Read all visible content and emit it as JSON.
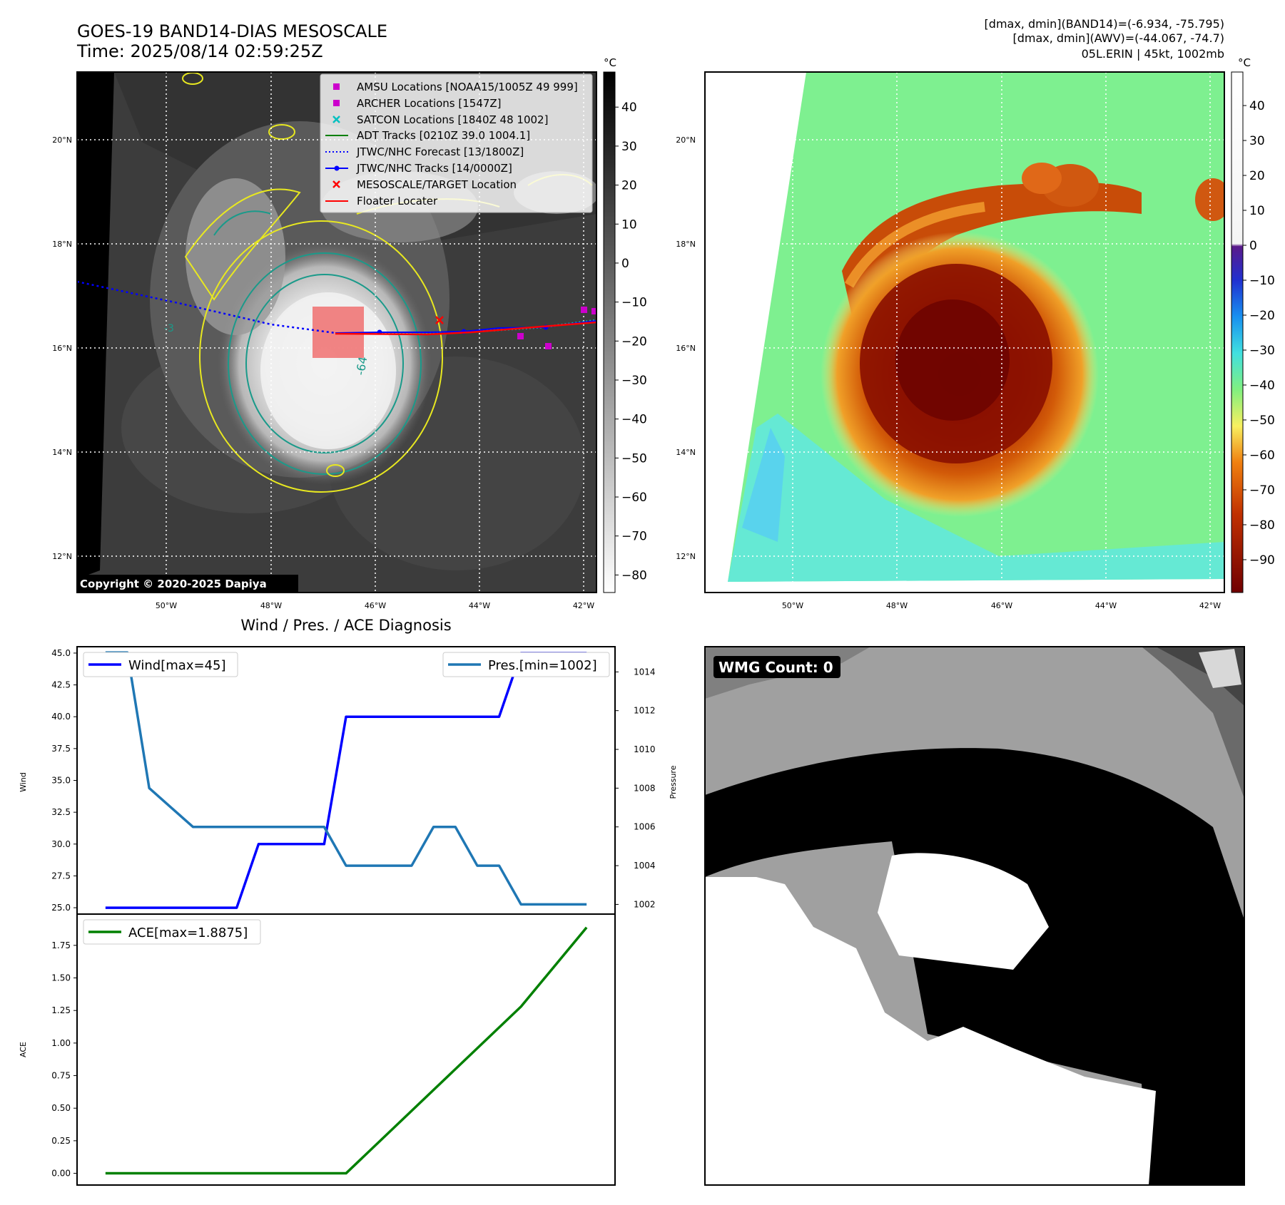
{
  "header": {
    "title_line1": "GOES-19 BAND14-DIAS MESOSCALE",
    "title_line2": "Time: 2025/08/14 02:59:25Z",
    "info_line1": "[dmax, dmin](BAND14)=(-6.934, -75.795)",
    "info_line2": "[dmax, dmin](AWV)=(-44.067, -74.7)",
    "info_line3": "05L.ERIN | 45kt, 1002mb"
  },
  "map_left": {
    "lat_labels": [
      "20°N",
      "18°N",
      "16°N",
      "14°N",
      "12°N"
    ],
    "lon_labels": [
      "50°W",
      "48°W",
      "46°W",
      "44°W",
      "42°W"
    ],
    "copyright": "Copyright © 2020-2025 Dapiya",
    "contour_labels": [
      "-64",
      "-3"
    ],
    "legend": [
      {
        "label": "AMSU Locations [NOAA15/1005Z 49 999]",
        "marker": "square",
        "color": "#cc00cc"
      },
      {
        "label": "ARCHER Locations [1547Z]",
        "marker": "square",
        "color": "#cc00cc"
      },
      {
        "label": "SATCON Locations [1840Z 48 1002]",
        "marker": "x",
        "color": "#00c0c0"
      },
      {
        "label": "ADT Tracks [0210Z 39.0 1004.1]",
        "marker": "line",
        "color": "#008000"
      },
      {
        "label": "JTWC/NHC Forecast [13/1800Z]",
        "marker": "dotted",
        "color": "#0000ff"
      },
      {
        "label": "JTWC/NHC Tracks [14/0000Z]",
        "marker": "line-dot",
        "color": "#0000ff"
      },
      {
        "label": "MESOSCALE/TARGET Location",
        "marker": "x",
        "color": "#ff0000"
      },
      {
        "label": "Floater Locater",
        "marker": "line",
        "color": "#ff0000"
      }
    ],
    "colorbar": {
      "unit": "°C",
      "ticks": [
        "40",
        "30",
        "20",
        "10",
        "0",
        "−10",
        "−20",
        "−30",
        "−40",
        "−50",
        "−60",
        "−70",
        "−80"
      ]
    }
  },
  "map_right": {
    "lat_labels": [
      "20°N",
      "18°N",
      "16°N",
      "14°N",
      "12°N"
    ],
    "lon_labels": [
      "50°W",
      "48°W",
      "46°W",
      "44°W",
      "42°W"
    ],
    "colorbar": {
      "unit": "°C",
      "ticks": [
        "40",
        "30",
        "20",
        "10",
        "0",
        "−10",
        "−20",
        "−30",
        "−40",
        "−50",
        "−60",
        "−70",
        "−80",
        "−90"
      ]
    }
  },
  "wmg": {
    "label": "WMG Count: 0"
  },
  "chart_data": [
    {
      "type": "line",
      "title": "Wind / Pres. / ACE Diagnosis",
      "xlabel": "",
      "ylabel": "Wind",
      "y2label": "Pressure",
      "ylim": [
        24.5,
        45.5
      ],
      "y2lim": [
        1001.5,
        1015.3
      ],
      "yticks": [
        "45.0",
        "42.5",
        "40.0",
        "37.5",
        "35.0",
        "32.5",
        "30.0",
        "27.5",
        "25.0"
      ],
      "y2ticks": [
        "1014",
        "1012",
        "1010",
        "1008",
        "1006",
        "1004",
        "1002"
      ],
      "x": [
        0,
        1,
        2,
        3,
        4,
        5,
        6,
        7,
        8,
        9,
        10,
        11,
        12,
        13,
        14,
        15,
        16,
        17,
        18,
        19,
        20,
        21,
        22
      ],
      "series": [
        {
          "name": "Wind[max=45]",
          "axis": "left",
          "color": "#0000ff",
          "values": [
            25,
            25,
            25,
            25,
            25,
            25,
            25,
            30,
            30,
            30,
            30,
            40,
            40,
            40,
            40,
            40,
            40,
            40,
            40,
            45,
            45,
            45,
            45
          ]
        },
        {
          "name": "Pres.[min=1002]",
          "axis": "right",
          "color": "#1f77b4",
          "values": [
            1015,
            1015,
            1008,
            1007,
            1006,
            1006,
            1006,
            1006,
            1006,
            1006,
            1006,
            1004,
            1004,
            1004,
            1004,
            1006,
            1006,
            1004,
            1004,
            1002,
            1002,
            1002,
            1002
          ]
        }
      ]
    },
    {
      "type": "line",
      "xlabel": "",
      "ylabel": "ACE",
      "ylim": [
        -0.09,
        1.99
      ],
      "yticks": [
        "1.75",
        "1.50",
        "1.25",
        "1.00",
        "0.75",
        "0.50",
        "0.25",
        "0.00"
      ],
      "x": [
        0,
        11,
        19,
        22
      ],
      "series": [
        {
          "name": "ACE[max=1.8875]",
          "color": "#008000",
          "values": [
            0,
            0,
            1.28,
            1.8875
          ]
        }
      ]
    }
  ]
}
